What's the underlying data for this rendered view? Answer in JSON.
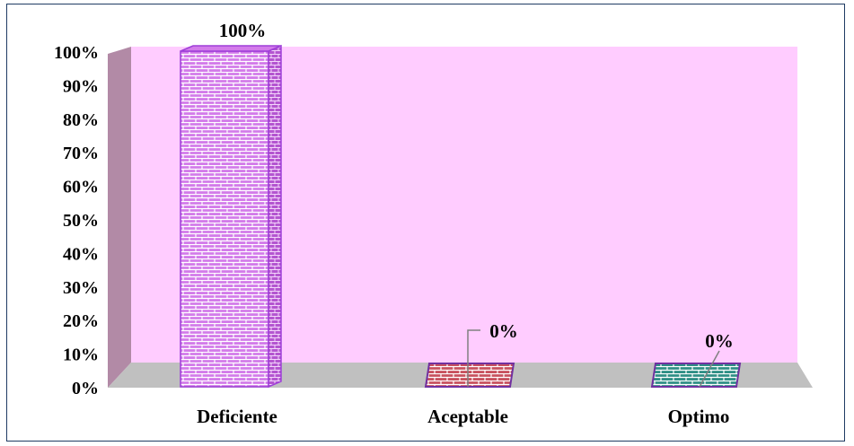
{
  "chart_data": {
    "type": "bar",
    "title": "",
    "xlabel": "",
    "ylabel": "",
    "categories": [
      "Deficiente",
      "Aceptable",
      "Optimo"
    ],
    "values": [
      100,
      0,
      0
    ],
    "data_labels": [
      "100%",
      "0%",
      "0%"
    ],
    "ylim": [
      0,
      100
    ],
    "y_ticks": [
      "0%",
      "10%",
      "20%",
      "30%",
      "40%",
      "50%",
      "60%",
      "70%",
      "80%",
      "90%",
      "100%"
    ],
    "grid": false,
    "legend": "none",
    "style": "3d-column",
    "colors": {
      "back_wall": "#ffccff",
      "side_wall": "#b28aa6",
      "floor": "#c0c0c0",
      "frame_border": "#1f3b63",
      "bar_fills": [
        "#d37bea",
        "#c8515e",
        "#2f8f86"
      ],
      "bar_outlines": [
        "#9e3fd8",
        "#7030a0",
        "#7030a0"
      ],
      "pattern": "brick"
    }
  }
}
